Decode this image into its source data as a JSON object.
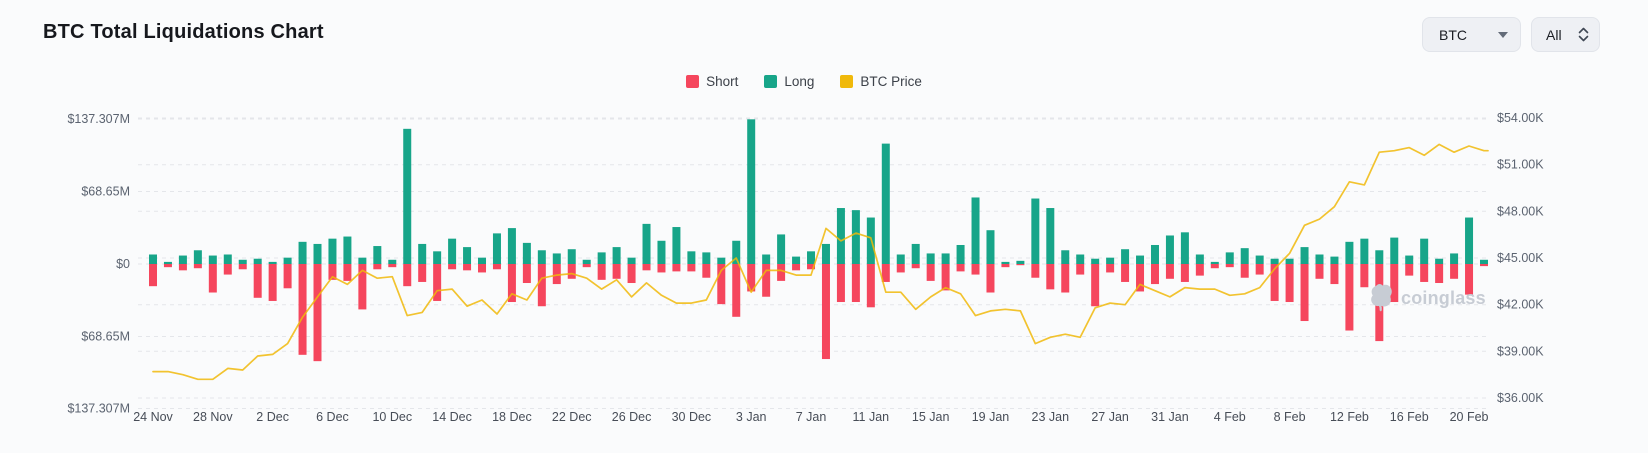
{
  "header": {
    "title": "BTC Total Liquidations Chart"
  },
  "controls": {
    "coin_select": {
      "value": "BTC"
    },
    "range_select": {
      "value": "All"
    }
  },
  "legend": [
    {
      "label": "Short",
      "color": "#f5465d"
    },
    {
      "label": "Long",
      "color": "#17a589"
    },
    {
      "label": "BTC Price",
      "color": "#f0b90b"
    }
  ],
  "watermark": {
    "text": "coinglass"
  },
  "chart_data": {
    "type": "bar",
    "subtype": "stacked-diverging-bars-with-line",
    "title": "BTC Total Liquidations Chart",
    "left_axis": {
      "label": "Liquidations (USD)",
      "ticks": [
        "$137.307M",
        "$68.65M",
        "$0",
        "$68.65M",
        "$137.307M"
      ],
      "max_millions": 137.307,
      "grid": true
    },
    "right_axis": {
      "label": "BTC Price (USD)",
      "ticks": [
        "$54.00K",
        "$51.00K",
        "$48.00K",
        "$45.00K",
        "$42.00K",
        "$39.00K",
        "$36.00K"
      ],
      "min_k": 36,
      "max_k": 54,
      "grid": true
    },
    "x_tick_labels": [
      "24 Nov",
      "28 Nov",
      "2 Dec",
      "6 Dec",
      "10 Dec",
      "14 Dec",
      "18 Dec",
      "22 Dec",
      "26 Dec",
      "30 Dec",
      "3 Jan",
      "7 Jan",
      "11 Jan",
      "15 Jan",
      "19 Jan",
      "23 Jan",
      "27 Jan",
      "31 Jan",
      "4 Feb",
      "8 Feb",
      "12 Feb",
      "16 Feb",
      "20 Feb"
    ],
    "dates": [
      "24 Nov",
      "25 Nov",
      "26 Nov",
      "27 Nov",
      "28 Nov",
      "29 Nov",
      "30 Nov",
      "1 Dec",
      "2 Dec",
      "3 Dec",
      "4 Dec",
      "5 Dec",
      "6 Dec",
      "7 Dec",
      "8 Dec",
      "9 Dec",
      "10 Dec",
      "11 Dec",
      "12 Dec",
      "13 Dec",
      "14 Dec",
      "15 Dec",
      "16 Dec",
      "17 Dec",
      "18 Dec",
      "19 Dec",
      "20 Dec",
      "21 Dec",
      "22 Dec",
      "23 Dec",
      "24 Dec",
      "25 Dec",
      "26 Dec",
      "27 Dec",
      "28 Dec",
      "29 Dec",
      "30 Dec",
      "31 Dec",
      "1 Jan",
      "2 Jan",
      "3 Jan",
      "4 Jan",
      "5 Jan",
      "6 Jan",
      "7 Jan",
      "8 Jan",
      "9 Jan",
      "10 Jan",
      "11 Jan",
      "12 Jan",
      "13 Jan",
      "14 Jan",
      "15 Jan",
      "16 Jan",
      "17 Jan",
      "18 Jan",
      "19 Jan",
      "20 Jan",
      "21 Jan",
      "22 Jan",
      "23 Jan",
      "24 Jan",
      "25 Jan",
      "26 Jan",
      "27 Jan",
      "28 Jan",
      "29 Jan",
      "30 Jan",
      "31 Jan",
      "1 Feb",
      "2 Feb",
      "3 Feb",
      "4 Feb",
      "5 Feb",
      "6 Feb",
      "7 Feb",
      "8 Feb",
      "9 Feb",
      "10 Feb",
      "11 Feb",
      "12 Feb",
      "13 Feb",
      "14 Feb",
      "15 Feb",
      "16 Feb",
      "17 Feb",
      "18 Feb",
      "19 Feb",
      "20 Feb",
      "21 Feb"
    ],
    "series": [
      {
        "name": "Long",
        "type": "bar",
        "direction": "up",
        "color": "#17a589",
        "unit": "USD millions",
        "values": [
          9,
          2,
          8,
          13,
          8,
          9,
          4,
          5,
          2,
          6,
          21,
          19,
          24,
          26,
          6,
          17,
          4,
          128,
          19,
          12,
          24,
          16,
          6,
          29,
          34,
          20,
          13,
          10,
          14,
          4,
          11,
          16,
          6,
          38,
          22,
          35,
          12,
          11,
          6,
          22,
          137,
          9,
          28,
          7,
          12,
          19,
          53,
          51,
          44,
          114,
          9,
          19,
          10,
          10,
          18,
          63,
          32,
          2,
          3,
          62,
          53,
          13,
          9,
          5,
          6,
          14,
          8,
          18,
          27,
          30,
          9,
          2,
          11,
          15,
          8,
          5,
          5,
          16,
          9,
          7,
          21,
          24,
          13,
          25,
          8,
          24,
          5,
          10,
          44,
          4
        ]
      },
      {
        "name": "Short",
        "type": "bar",
        "direction": "down",
        "color": "#f5465d",
        "unit": "USD millions",
        "values": [
          21,
          3,
          6,
          4,
          27,
          10,
          5,
          32,
          35,
          23,
          86,
          92,
          15,
          16,
          43,
          5,
          3,
          21,
          17,
          35,
          5,
          6,
          8,
          5,
          36,
          18,
          40,
          19,
          14,
          3,
          15,
          14,
          18,
          6,
          8,
          7,
          7,
          13,
          38,
          50,
          26,
          31,
          16,
          6,
          5,
          90,
          36,
          36,
          41,
          17,
          8,
          4,
          16,
          25,
          7,
          10,
          27,
          3,
          1,
          13,
          24,
          27,
          10,
          40,
          8,
          17,
          26,
          19,
          14,
          17,
          11,
          4,
          3,
          13,
          10,
          35,
          36,
          54,
          14,
          19,
          63,
          22,
          73,
          36,
          11,
          17,
          18,
          14,
          29,
          2
        ]
      },
      {
        "name": "BTC Price",
        "type": "line",
        "axis": "right",
        "color": "#f0b90b",
        "unit": "USD thousands",
        "values": [
          37.7,
          37.7,
          37.5,
          37.2,
          37.2,
          37.9,
          37.8,
          38.7,
          38.8,
          39.5,
          41.2,
          42.5,
          43.8,
          43.3,
          44.2,
          43.7,
          43.8,
          41.3,
          41.5,
          42.9,
          43.0,
          41.9,
          42.3,
          41.4,
          42.7,
          42.3,
          43.7,
          43.9,
          44.0,
          43.7,
          43.0,
          43.6,
          42.5,
          43.4,
          42.6,
          42.1,
          42.1,
          42.3,
          44.2,
          45.0,
          42.8,
          44.2,
          44.2,
          43.9,
          43.9,
          46.9,
          46.1,
          46.6,
          46.3,
          42.8,
          42.8,
          41.7,
          42.5,
          43.1,
          42.7,
          41.3,
          41.6,
          41.7,
          41.6,
          39.5,
          39.9,
          40.1,
          39.9,
          41.8,
          42.1,
          42.0,
          43.3,
          42.9,
          42.5,
          43.1,
          43.0,
          43.0,
          42.6,
          42.7,
          43.1,
          44.3,
          45.3,
          47.1,
          47.5,
          48.3,
          49.9,
          49.7,
          51.8,
          51.9,
          52.1,
          51.6,
          52.3,
          51.8,
          52.2,
          51.9
        ]
      }
    ]
  }
}
